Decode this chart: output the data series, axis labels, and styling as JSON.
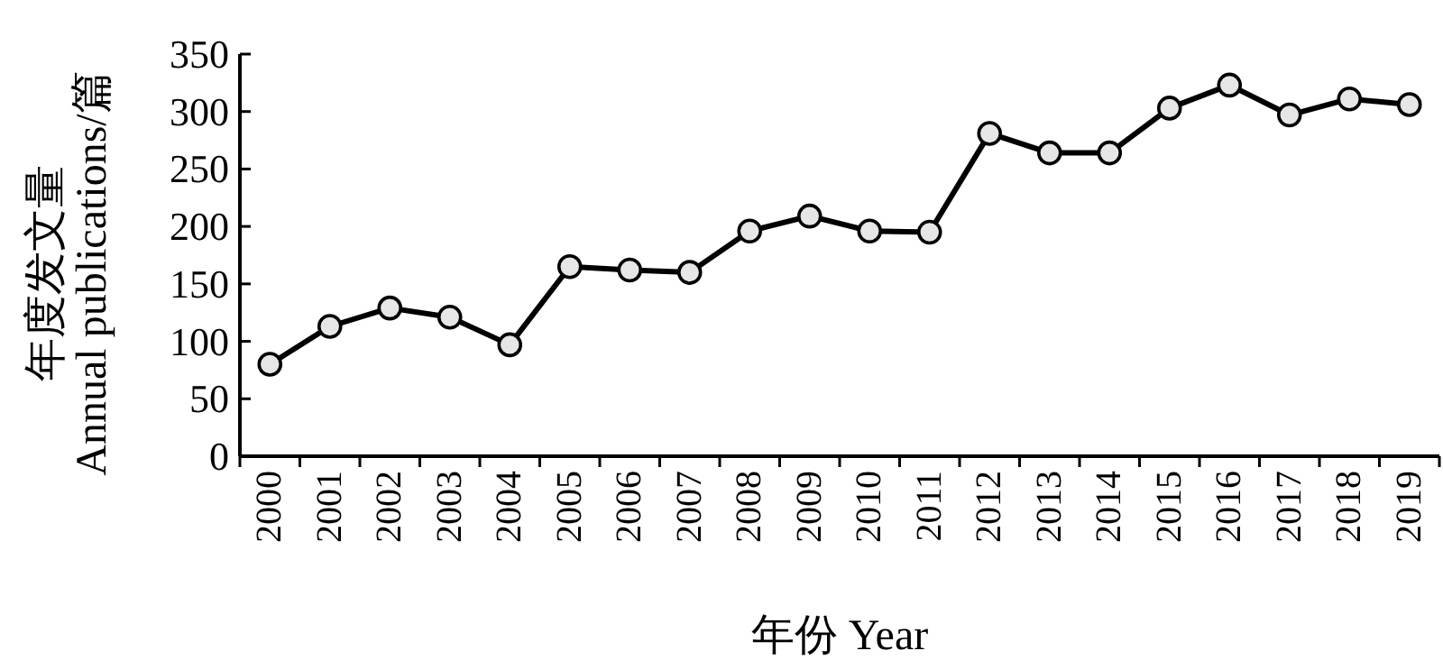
{
  "chart_data": {
    "type": "line",
    "xlabel": "年份 Year",
    "ylabel": "年度发文量\nAnnual publications/篇",
    "categories": [
      "2000",
      "2001",
      "2002",
      "2003",
      "2004",
      "2005",
      "2006",
      "2007",
      "2008",
      "2009",
      "2010",
      "2011",
      "2012",
      "2013",
      "2014",
      "2015",
      "2016",
      "2017",
      "2018",
      "2019"
    ],
    "series": [
      {
        "color": "#000000",
        "values": [
          80,
          113,
          129,
          121,
          97,
          165,
          162,
          160,
          196,
          209,
          196,
          195,
          281,
          264,
          264,
          303,
          323,
          297,
          311,
          306
        ]
      }
    ],
    "ylim": [
      0,
      350
    ],
    "yticks": [
      0,
      50,
      100,
      150,
      200,
      250,
      300,
      350
    ],
    "marker": "circle",
    "line_style": "solid",
    "grid": false
  }
}
